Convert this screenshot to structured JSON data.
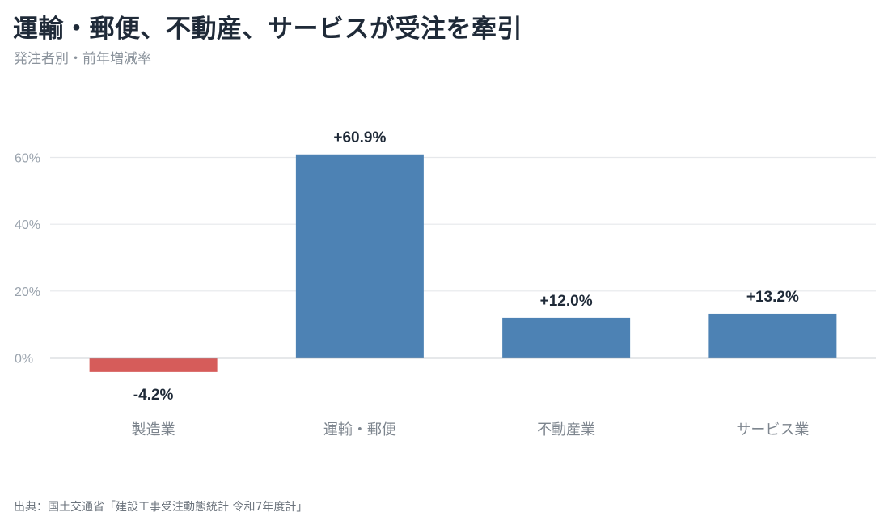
{
  "title": "運輸・郵便、不動産、サービスが受注を牽引",
  "subtitle": "発注者別・前年増減率",
  "source": "出典：国土交通省「建設工事受注動態統計 令和7年度計」",
  "colors": {
    "positive": "#4d82b4",
    "negative": "#d65c5a",
    "grid": "#e6e8eb",
    "axis": "#9aa3ad",
    "tick_label": "#9aa3ad",
    "category_label": "#7d858e",
    "data_label": "#1f2a38"
  },
  "chart_data": {
    "type": "bar",
    "categories": [
      "製造業",
      "運輸・郵便",
      "不動産業",
      "サービス業"
    ],
    "values": [
      -4.2,
      60.9,
      12.0,
      13.2
    ],
    "data_labels": [
      "-4.2%",
      "+60.9%",
      "+12.0%",
      "+13.2%"
    ],
    "yticks": [
      0,
      20,
      40,
      60
    ],
    "ytick_labels": [
      "0%",
      "20%",
      "40%",
      "60%"
    ],
    "ylim": [
      -6,
      64
    ],
    "grid": true,
    "legend": "none"
  }
}
